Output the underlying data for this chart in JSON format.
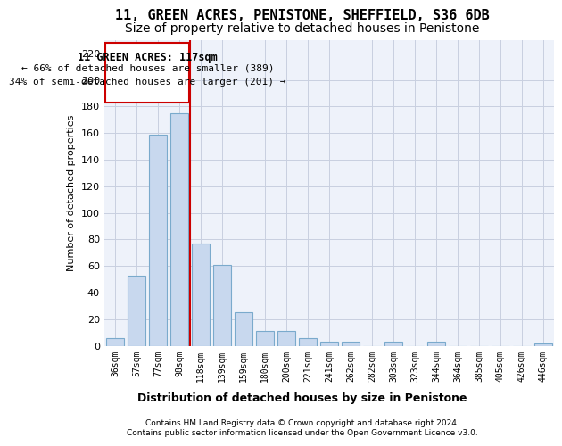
{
  "title": "11, GREEN ACRES, PENISTONE, SHEFFIELD, S36 6DB",
  "subtitle": "Size of property relative to detached houses in Penistone",
  "xlabel": "Distribution of detached houses by size in Penistone",
  "ylabel": "Number of detached properties",
  "categories": [
    "36sqm",
    "57sqm",
    "77sqm",
    "98sqm",
    "118sqm",
    "139sqm",
    "159sqm",
    "180sqm",
    "200sqm",
    "221sqm",
    "241sqm",
    "262sqm",
    "282sqm",
    "303sqm",
    "323sqm",
    "344sqm",
    "364sqm",
    "385sqm",
    "405sqm",
    "426sqm",
    "446sqm"
  ],
  "values": [
    6,
    53,
    159,
    175,
    77,
    61,
    25,
    11,
    11,
    6,
    3,
    3,
    0,
    3,
    0,
    3,
    0,
    0,
    0,
    0,
    2
  ],
  "bar_color": "#c8d8ee",
  "bar_edge_color": "#7aaacc",
  "red_line_x": 3.5,
  "ylim": [
    0,
    230
  ],
  "yticks": [
    0,
    20,
    40,
    60,
    80,
    100,
    120,
    140,
    160,
    180,
    200,
    220
  ],
  "annotation_title": "11 GREEN ACRES: 117sqm",
  "annotation_line1": "← 66% of detached houses are smaller (389)",
  "annotation_line2": "34% of semi-detached houses are larger (201) →",
  "annotation_box_color": "#cc0000",
  "footer_line1": "Contains HM Land Registry data © Crown copyright and database right 2024.",
  "footer_line2": "Contains public sector information licensed under the Open Government Licence v3.0.",
  "bg_color": "#ffffff",
  "plot_bg_color": "#eef2fa",
  "grid_color": "#c8cfe0",
  "title_fontsize": 11,
  "subtitle_fontsize": 10,
  "ylabel_fontsize": 8,
  "xlabel_fontsize": 9,
  "tick_fontsize": 8,
  "xtick_fontsize": 7
}
